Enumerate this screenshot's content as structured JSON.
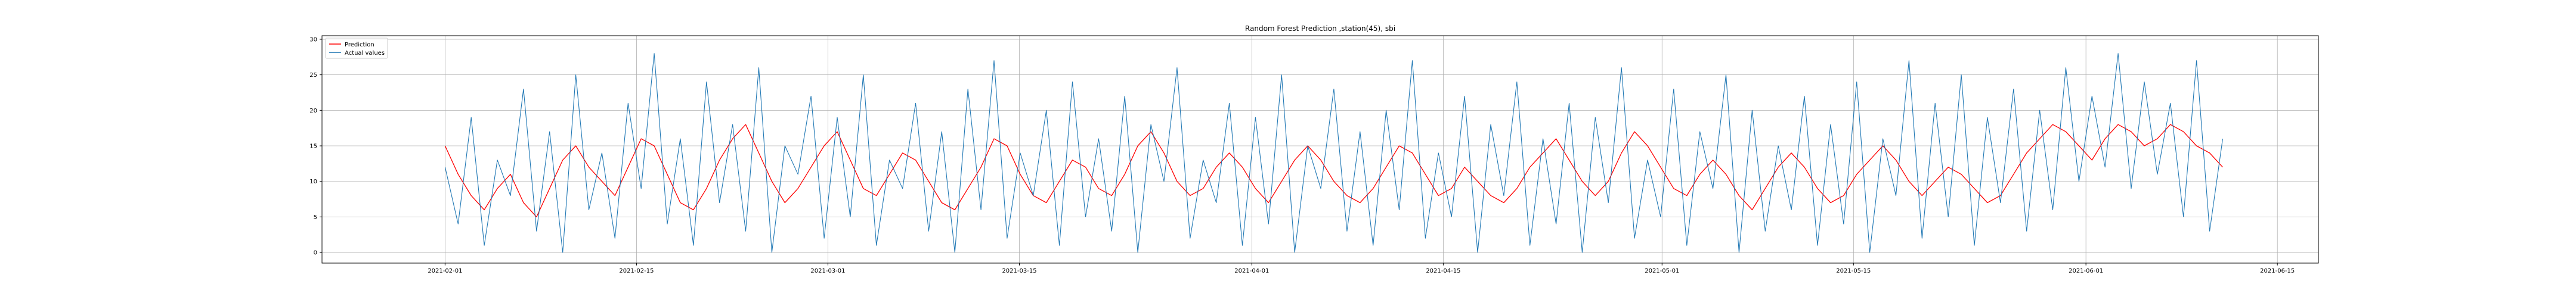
{
  "chart_data": {
    "type": "line",
    "title": "Random Forest Prediction ,station(45), sbi",
    "xlabel": "",
    "ylabel": "",
    "x_range": [
      "2021-01-23",
      "2021-06-18"
    ],
    "ylim": [
      -1.5,
      30.5
    ],
    "grid": true,
    "legend_placement": "top-left",
    "x_ticks": [
      "2021-02-01",
      "2021-02-15",
      "2021-03-01",
      "2021-03-15",
      "2021-04-01",
      "2021-04-15",
      "2021-05-01",
      "2021-05-15",
      "2021-06-01",
      "2021-06-15"
    ],
    "y_ticks": [
      0,
      5,
      10,
      15,
      20,
      25,
      30
    ],
    "x_start": "2021-02-01",
    "x_end": "2021-06-11",
    "series": [
      {
        "name": "Prediction",
        "color": "#ff0000",
        "values": [
          15,
          11,
          8,
          6,
          9,
          11,
          7,
          5,
          9,
          13,
          15,
          12,
          10,
          8,
          12,
          16,
          15,
          11,
          7,
          6,
          9,
          13,
          16,
          18,
          14,
          10,
          7,
          9,
          12,
          15,
          17,
          13,
          9,
          8,
          11,
          14,
          13,
          10,
          7,
          6,
          9,
          12,
          16,
          15,
          11,
          8,
          7,
          10,
          13,
          12,
          9,
          8,
          11,
          15,
          17,
          14,
          10,
          8,
          9,
          12,
          14,
          12,
          9,
          7,
          10,
          13,
          15,
          13,
          10,
          8,
          7,
          9,
          12,
          15,
          14,
          11,
          8,
          9,
          12,
          10,
          8,
          7,
          9,
          12,
          14,
          16,
          13,
          10,
          8,
          10,
          14,
          17,
          15,
          12,
          9,
          8,
          11,
          13,
          11,
          8,
          6,
          9,
          12,
          14,
          12,
          9,
          7,
          8,
          11,
          13,
          15,
          13,
          10,
          8,
          10,
          12,
          11,
          9,
          7,
          8,
          11,
          14,
          16,
          18,
          17,
          15,
          13,
          16,
          18,
          17,
          15,
          16,
          18,
          17,
          15,
          14,
          12
        ]
      },
      {
        "name": "Actual values",
        "color": "#1f77b4",
        "values": [
          12,
          4,
          19,
          1,
          13,
          8,
          23,
          3,
          17,
          0,
          25,
          6,
          14,
          2,
          21,
          9,
          28,
          4,
          16,
          1,
          24,
          7,
          18,
          3,
          26,
          0,
          15,
          11,
          22,
          2,
          19,
          5,
          25,
          1,
          13,
          9,
          21,
          3,
          17,
          0,
          23,
          6,
          27,
          2,
          14,
          8,
          20,
          1,
          24,
          5,
          16,
          3,
          22,
          0,
          18,
          10,
          26,
          2,
          13,
          7,
          21,
          1,
          19,
          4,
          25,
          0,
          15,
          9,
          23,
          3,
          17,
          1,
          20,
          6,
          27,
          2,
          14,
          5,
          22,
          0,
          18,
          8,
          24,
          1,
          16,
          4,
          21,
          0,
          19,
          7,
          26,
          2,
          13,
          5,
          23,
          1,
          17,
          9,
          25,
          0,
          20,
          3,
          15,
          6,
          22,
          1,
          18,
          4,
          24,
          0,
          16,
          8,
          27,
          2,
          21,
          5,
          25,
          1,
          19,
          7,
          23,
          3,
          20,
          6,
          26,
          10,
          22,
          12,
          28,
          9,
          24,
          11,
          21,
          5,
          27,
          3,
          16
        ]
      }
    ]
  }
}
